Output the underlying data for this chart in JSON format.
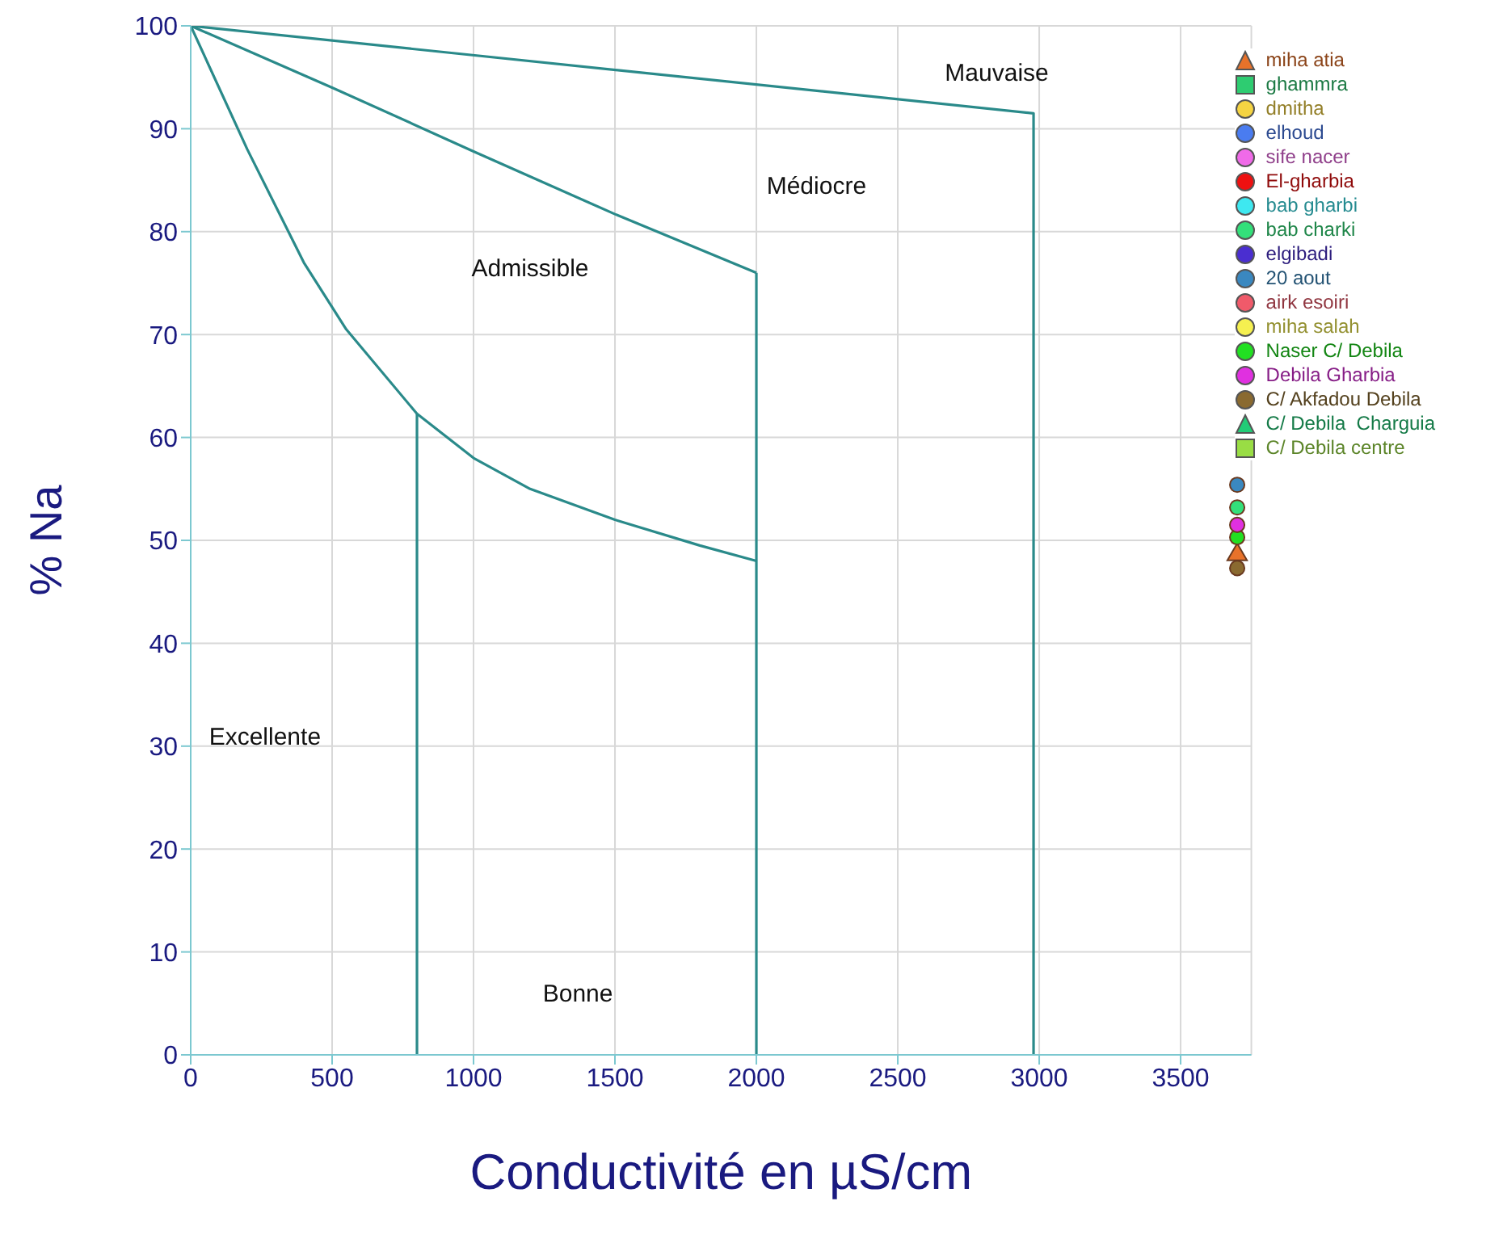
{
  "chart_data": {
    "type": "scatter",
    "xlabel": "Conductivité en µS/cm",
    "ylabel": "% Na",
    "xlim": [
      0,
      3750
    ],
    "ylim": [
      0,
      100
    ],
    "xticks": [
      0,
      500,
      1000,
      1500,
      2000,
      2500,
      3000,
      3500
    ],
    "yticks": [
      0,
      10,
      20,
      30,
      40,
      50,
      60,
      70,
      80,
      90,
      100
    ],
    "grid": true,
    "legend": "top right",
    "annotations": [
      "Excellente",
      "Bonne",
      "Admissible",
      "Médiocre",
      "Mauvaise"
    ],
    "series": [
      {
        "type": "line",
        "color": "#2a8a8a",
        "marker": "none",
        "line_style": "solid",
        "x": [
          0,
          200,
          400,
          550,
          800,
          1000,
          1200,
          1500,
          1800,
          2000
        ],
        "values": [
          100,
          88,
          77,
          70.5,
          62.3,
          58,
          55,
          52,
          49.5,
          48
        ]
      },
      {
        "type": "line",
        "color": "#2a8a8a",
        "marker": "none",
        "line_style": "solid",
        "x": [
          800,
          800
        ],
        "values": [
          62.3,
          0
        ]
      },
      {
        "type": "line",
        "color": "#2a8a8a",
        "marker": "none",
        "line_style": "solid",
        "x": [
          0,
          500,
          1000,
          1500,
          2000
        ],
        "values": [
          100,
          94,
          87.8,
          81.7,
          76
        ]
      },
      {
        "type": "line",
        "color": "#2a8a8a",
        "marker": "none",
        "line_style": "solid",
        "x": [
          2000,
          2000
        ],
        "values": [
          76,
          0
        ]
      },
      {
        "type": "line",
        "color": "#2a8a8a",
        "marker": "none",
        "line_style": "solid",
        "x": [
          0,
          2980,
          2980
        ],
        "values": [
          100,
          91.5,
          0
        ]
      },
      {
        "name": "miha atia",
        "color": "#e8722a",
        "marker": "triangle",
        "x": [
          3700
        ],
        "values": [
          48.6
        ]
      },
      {
        "name": "ghammra",
        "color": "#2ecc71",
        "marker": "square",
        "values": [
          null
        ]
      },
      {
        "name": "dmitha",
        "color": "#f5d442",
        "marker": "circle",
        "values": [
          null
        ]
      },
      {
        "name": "elhoud",
        "color": "#4a7cf0",
        "marker": "circle",
        "values": [
          null
        ]
      },
      {
        "name": "sife nacer",
        "color": "#f06ae8",
        "marker": "circle",
        "values": [
          null
        ]
      },
      {
        "name": "El-gharbia",
        "color": "#ee1111",
        "marker": "circle",
        "values": [
          null
        ]
      },
      {
        "name": "bab gharbi",
        "color": "#3ee8f0",
        "marker": "circle",
        "values": [
          null
        ]
      },
      {
        "name": "bab charki",
        "color": "#33e07a",
        "marker": "circle",
        "x": [
          3700
        ],
        "values": [
          53.2
        ]
      },
      {
        "name": "elgibadi",
        "color": "#4a2ed0",
        "marker": "circle",
        "values": [
          null
        ]
      },
      {
        "name": "20 aout",
        "color": "#3a88c0",
        "marker": "circle",
        "x": [
          3700
        ],
        "values": [
          55.4
        ]
      },
      {
        "name": "airk esoiri",
        "color": "#f05a6a",
        "marker": "circle",
        "values": [
          null
        ]
      },
      {
        "name": "miha salah",
        "color": "#f5f050",
        "marker": "circle",
        "values": [
          null
        ]
      },
      {
        "name": "Naser C/ Debila",
        "color": "#22e022",
        "marker": "circle",
        "x": [
          3700
        ],
        "values": [
          50.3
        ]
      },
      {
        "name": "Debila Gharbia",
        "color": "#e030e0",
        "marker": "circle",
        "x": [
          3700
        ],
        "values": [
          51.5
        ]
      },
      {
        "name": "C/ Akfadou Debila",
        "color": "#8a6a30",
        "marker": "circle",
        "x": [
          3700
        ],
        "values": [
          47.3
        ]
      },
      {
        "name": "C/ Debila  Charguia",
        "color": "#22cc77",
        "marker": "triangle",
        "values": [
          null
        ]
      },
      {
        "name": "C/ Debila centre",
        "color": "#99dd44",
        "marker": "square",
        "values": [
          null
        ]
      }
    ]
  }
}
